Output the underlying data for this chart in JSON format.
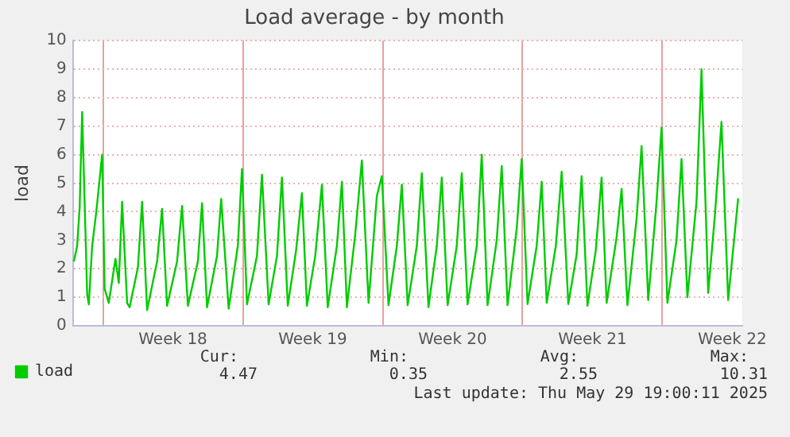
{
  "chart_data": {
    "type": "line",
    "title": "Load average - by month",
    "ylabel": "load",
    "x": [
      "2025-04-26T13:00",
      "2025-04-26T17:00",
      "2025-04-26T20:00",
      "2025-04-26T23:00",
      "2025-04-27T05:00",
      "2025-04-27T07:00",
      "2025-04-27T11:00",
      "2025-04-27T16:00",
      "2025-04-27T23:00",
      "2025-04-28T02:00",
      "2025-04-28T07:00",
      "2025-04-28T15:00",
      "2025-04-28T19:00",
      "2025-04-28T23:00",
      "2025-04-29T05:00",
      "2025-04-29T08:00",
      "2025-04-29T18:00",
      "2025-04-29T23:00",
      "2025-04-30T05:00",
      "2025-04-30T17:00",
      "2025-04-30T23:00",
      "2025-05-01T05:00",
      "2025-05-01T17:00",
      "2025-05-01T23:00",
      "2025-05-02T06:00",
      "2025-05-02T18:00",
      "2025-05-02T23:00",
      "2025-05-03T05:00",
      "2025-05-03T17:00",
      "2025-05-03T22:00",
      "2025-05-04T07:00",
      "2025-05-04T18:00",
      "2025-05-04T23:00",
      "2025-05-05T05:00",
      "2025-05-05T17:00",
      "2025-05-05T23:00",
      "2025-05-06T07:00",
      "2025-05-06T17:00",
      "2025-05-06T23:00",
      "2025-05-07T06:00",
      "2025-05-07T16:00",
      "2025-05-07T23:00",
      "2025-05-08T05:00",
      "2025-05-08T15:00",
      "2025-05-08T23:00",
      "2025-05-09T06:00",
      "2025-05-09T17:00",
      "2025-05-09T23:00",
      "2025-05-10T05:00",
      "2025-05-10T15:00",
      "2025-05-10T23:00",
      "2025-05-11T07:00",
      "2025-05-11T17:00",
      "2025-05-11T23:00",
      "2025-05-12T07:00",
      "2025-05-12T17:00",
      "2025-05-12T23:00",
      "2025-05-13T06:00",
      "2025-05-13T17:00",
      "2025-05-13T23:00",
      "2025-05-14T07:00",
      "2025-05-14T17:00",
      "2025-05-14T23:00",
      "2025-05-15T06:00",
      "2025-05-15T17:00",
      "2025-05-15T23:00",
      "2025-05-16T06:00",
      "2025-05-16T17:00",
      "2025-05-16T23:00",
      "2025-05-17T06:00",
      "2025-05-17T17:00",
      "2025-05-17T23:00",
      "2025-05-18T06:00",
      "2025-05-18T17:00",
      "2025-05-18T23:00",
      "2025-05-19T06:00",
      "2025-05-19T17:00",
      "2025-05-19T23:00",
      "2025-05-20T05:00",
      "2025-05-20T16:00",
      "2025-05-20T23:00",
      "2025-05-21T07:00",
      "2025-05-21T17:00",
      "2025-05-21T23:00",
      "2025-05-22T06:00",
      "2025-05-22T16:00",
      "2025-05-22T23:00",
      "2025-05-23T05:00",
      "2025-05-23T17:00",
      "2025-05-23T23:00",
      "2025-05-24T06:00",
      "2025-05-24T17:00",
      "2025-05-24T23:00",
      "2025-05-25T07:00",
      "2025-05-25T17:00",
      "2025-05-25T23:00",
      "2025-05-26T06:00",
      "2025-05-26T17:00",
      "2025-05-26T23:00",
      "2025-05-27T06:00",
      "2025-05-27T17:00",
      "2025-05-27T23:00",
      "2025-05-28T07:00",
      "2025-05-28T15:00",
      "2025-05-28T23:00",
      "2025-05-29T07:00",
      "2025-05-29T19:00"
    ],
    "series": [
      {
        "name": "load",
        "color": "#00cc00",
        "values": [
          2.25,
          2.8,
          4.15,
          7.5,
          1.1,
          0.75,
          2.8,
          4.0,
          6.0,
          1.3,
          0.8,
          2.35,
          1.5,
          4.35,
          0.8,
          0.65,
          2.05,
          4.35,
          0.55,
          2.25,
          4.1,
          0.7,
          2.25,
          4.2,
          0.7,
          2.25,
          4.3,
          0.65,
          2.45,
          4.45,
          0.6,
          2.8,
          5.5,
          0.75,
          2.45,
          5.3,
          0.75,
          2.45,
          5.2,
          0.7,
          2.65,
          4.65,
          0.7,
          2.45,
          4.95,
          0.65,
          2.8,
          5.05,
          0.65,
          3.2,
          5.8,
          0.8,
          4.55,
          5.25,
          0.72,
          2.8,
          4.95,
          0.72,
          2.8,
          5.35,
          0.65,
          2.8,
          5.2,
          0.72,
          2.8,
          5.35,
          0.75,
          2.8,
          6.0,
          0.72,
          3.0,
          5.6,
          0.72,
          3.4,
          5.85,
          0.76,
          2.8,
          5.05,
          0.8,
          2.8,
          5.4,
          0.76,
          2.5,
          5.25,
          0.7,
          2.65,
          5.2,
          0.8,
          3.1,
          4.8,
          0.72,
          3.75,
          6.3,
          0.9,
          4.35,
          6.95,
          0.8,
          3.0,
          5.85,
          1.0,
          4.35,
          9.0,
          1.15,
          3.85,
          7.15,
          0.9,
          4.47
        ]
      }
    ],
    "xlim": [
      "2025-04-26T12:00",
      "2025-05-30T00:00"
    ],
    "xticks": [
      {
        "value": "2025-04-28T00:00",
        "label": null
      },
      {
        "value": "2025-05-01T12:00",
        "label": "Week 18"
      },
      {
        "value": "2025-05-05T00:00",
        "label": null
      },
      {
        "value": "2025-05-08T12:00",
        "label": "Week 19"
      },
      {
        "value": "2025-05-12T00:00",
        "label": null
      },
      {
        "value": "2025-05-15T12:00",
        "label": "Week 20"
      },
      {
        "value": "2025-05-19T00:00",
        "label": null
      },
      {
        "value": "2025-05-22T12:00",
        "label": "Week 21"
      },
      {
        "value": "2025-05-26T00:00",
        "label": null
      },
      {
        "value": "2025-05-29T12:00",
        "label": "Week 22"
      }
    ],
    "ylim": [
      0,
      10
    ],
    "yticks": [
      0,
      1,
      2,
      3,
      4,
      5,
      6,
      7,
      8,
      9,
      10
    ],
    "grid": true,
    "legend": "bottom left",
    "marker": "none",
    "line_style": "solid",
    "annotations": [
      "Cur:",
      "4.47",
      "Min:",
      "0.35",
      "Avg:",
      "2.55",
      "Max:",
      "10.31",
      "Last update: Thu May 29 19:00:11 2025"
    ]
  }
}
